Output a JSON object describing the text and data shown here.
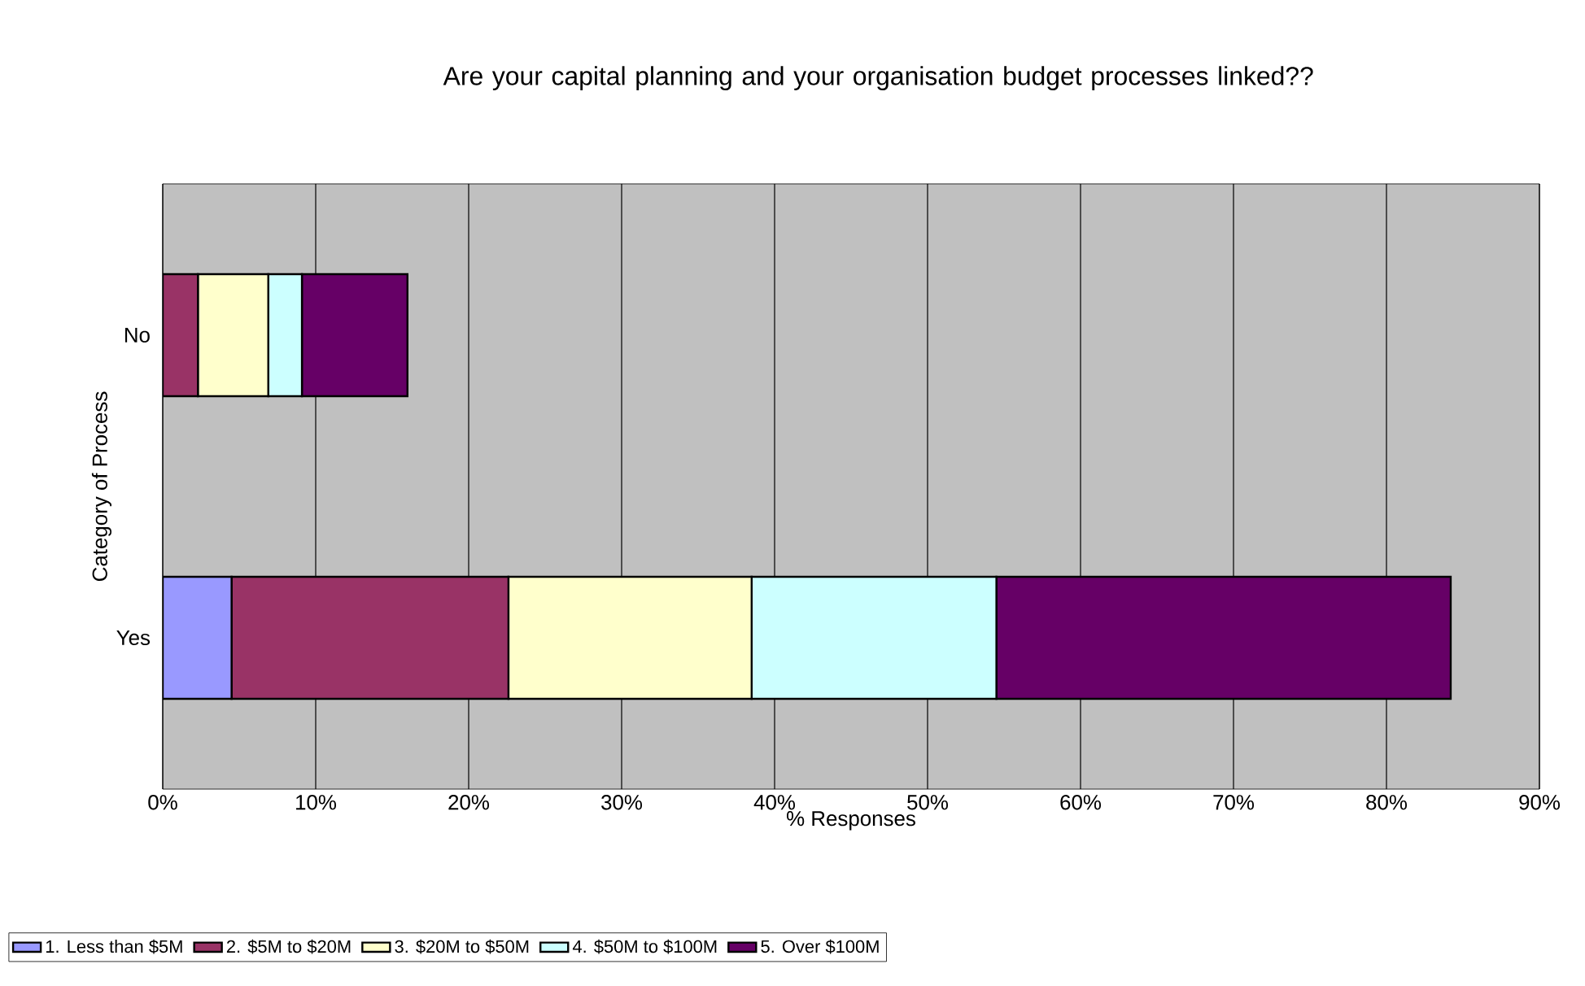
{
  "chart_data": {
    "type": "bar",
    "orientation": "horizontal",
    "stacked": true,
    "title": "Are your capital planning and your organisation budget processes linked??",
    "xlabel": "% Responses",
    "ylabel": "Category of Process",
    "categories": [
      "No",
      "Yes"
    ],
    "series": [
      {
        "name": "1. Less than $5M",
        "color": "#9999ff",
        "values": [
          0,
          4.5
        ]
      },
      {
        "name": "2. $5M to $20M",
        "color": "#993366",
        "values": [
          2.3,
          18.1
        ]
      },
      {
        "name": "3. $20M to $50M",
        "color": "#ffffcc",
        "values": [
          4.6,
          15.9
        ]
      },
      {
        "name": "4. $50M to $100M",
        "color": "#ccffff",
        "values": [
          2.2,
          16.0
        ]
      },
      {
        "name": "5. Over $100M",
        "color": "#660066",
        "values": [
          6.9,
          29.7
        ]
      }
    ],
    "xlim": [
      0,
      90
    ],
    "xticks": [
      {
        "value": 0,
        "label": "0%"
      },
      {
        "value": 10,
        "label": "10%"
      },
      {
        "value": 20,
        "label": "20%"
      },
      {
        "value": 30,
        "label": "30%"
      },
      {
        "value": 40,
        "label": "40%"
      },
      {
        "value": 50,
        "label": "50%"
      },
      {
        "value": 60,
        "label": "60%"
      },
      {
        "value": 70,
        "label": "70%"
      },
      {
        "value": 80,
        "label": "80%"
      },
      {
        "value": 90,
        "label": "90%"
      }
    ],
    "grid": "x",
    "legend": "bottom"
  }
}
